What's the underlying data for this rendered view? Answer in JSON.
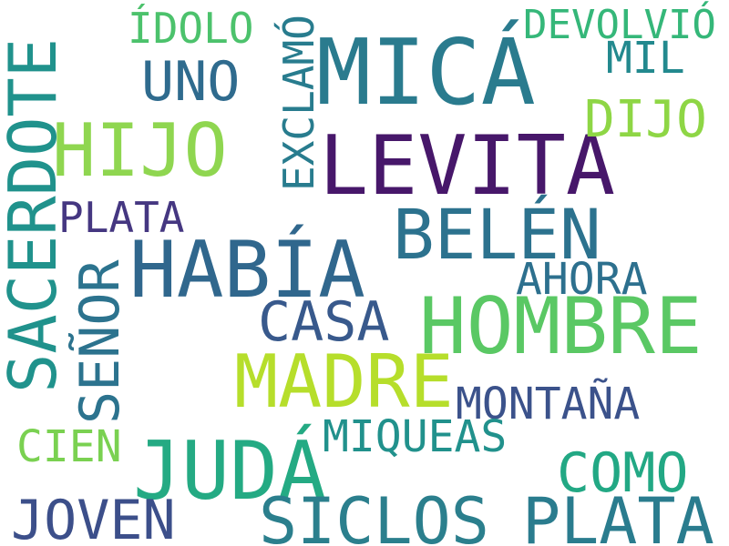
{
  "words": {
    "mica": {
      "text": "MICÁ",
      "color": "#2a7b8e"
    },
    "levita": {
      "text": "LEVITA",
      "color": "#47176a"
    },
    "hijo": {
      "text": "HIJO",
      "color": "#8fd650"
    },
    "habia": {
      "text": "HABÍA",
      "color": "#30678d"
    },
    "hombre": {
      "text": "HOMBRE",
      "color": "#5ac864"
    },
    "madre": {
      "text": "MADRE",
      "color": "#b6de2b"
    },
    "juda": {
      "text": "JUDÁ",
      "color": "#24aa83"
    },
    "siclos": {
      "text": "SICLOS",
      "color": "#2b7f8d"
    },
    "plata_big": {
      "text": "PLATA",
      "color": "#2a7c8e"
    },
    "belen": {
      "text": "BELÉN",
      "color": "#2c728e"
    },
    "joven": {
      "text": "JOVEN",
      "color": "#3c4f8a"
    },
    "como": {
      "text": "COMO",
      "color": "#22a884"
    },
    "idolo": {
      "text": "ÍDOLO",
      "color": "#4cc26c"
    },
    "devolvio": {
      "text": "DEVOLVIÓ",
      "color": "#35b779"
    },
    "mil": {
      "text": "MIL",
      "color": "#23898e"
    },
    "uno": {
      "text": "UNO",
      "color": "#2f6b8e"
    },
    "dijo": {
      "text": "DIJO",
      "color": "#8ed645"
    },
    "plata_sm": {
      "text": "PLATA",
      "color": "#453781"
    },
    "ahora": {
      "text": "AHORA",
      "color": "#2d708e"
    },
    "casa": {
      "text": "CASA",
      "color": "#38598c"
    },
    "montana": {
      "text": "MONTAÑA",
      "color": "#3b528b"
    },
    "miqueas": {
      "text": "MIQUEAS",
      "color": "#21918c"
    },
    "cien": {
      "text": "CIEN",
      "color": "#7ad151"
    },
    "sacerdote": {
      "text": "SACERDOTE",
      "color": "#20928c"
    },
    "senor": {
      "text": "SEÑOR",
      "color": "#2c738e"
    },
    "exclamo": {
      "text": "EXCLAMÓ",
      "color": "#287c8e"
    }
  }
}
